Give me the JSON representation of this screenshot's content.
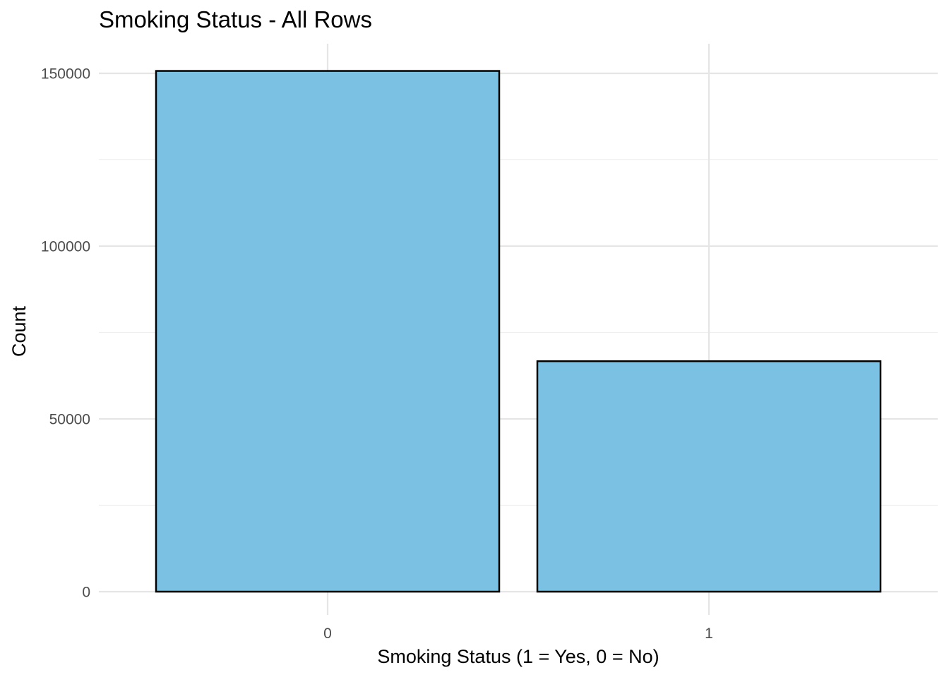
{
  "chart_data": {
    "type": "bar",
    "title": "Smoking Status - All Rows",
    "xlabel": "Smoking Status (1 = Yes, 0 = No)",
    "ylabel": "Count",
    "categories": [
      "0",
      "1"
    ],
    "values": [
      150700,
      66700
    ],
    "ylim": [
      0,
      155000
    ],
    "y_ticks": [
      0,
      50000,
      100000,
      150000
    ],
    "y_tick_labels": [
      "0",
      "50000",
      "100000",
      "150000"
    ],
    "grid": true,
    "bar_color": "#7AC1E4",
    "bar_edge_color": "#000000"
  }
}
